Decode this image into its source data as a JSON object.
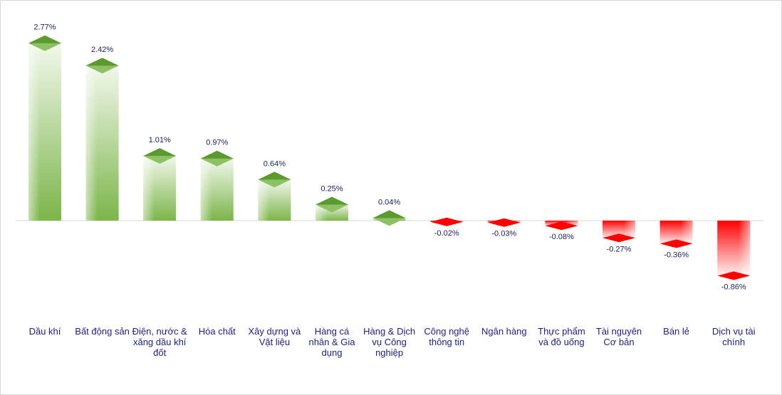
{
  "chart_data": {
    "type": "bar",
    "style": "3d-cylinder",
    "categories": [
      "Dầu khí",
      "Bất động sản",
      "Điện, nước & xăng dầu khí đốt",
      "Hóa chất",
      "Xây dựng và Vật liệu",
      "Hàng cá nhân & Gia dụng",
      "Hàng & Dịch vụ Công nghiệp",
      "Công nghệ thông tin",
      "Ngân hàng",
      "Thực phẩm và đồ uống",
      "Tài nguyên Cơ bản",
      "Bán lẻ",
      "Dịch vụ tài chính"
    ],
    "category_lines": [
      [
        "Dầu khí"
      ],
      [
        "Bất động sản"
      ],
      [
        "Điện, nước &",
        "xăng dầu khí",
        "đốt"
      ],
      [
        "Hóa chất"
      ],
      [
        "Xây dựng và",
        "Vật liệu"
      ],
      [
        "Hàng cá",
        "nhân & Gia",
        "dụng"
      ],
      [
        "Hàng & Dịch",
        "vụ Công",
        "nghiệp"
      ],
      [
        "Công nghệ",
        "thông tin"
      ],
      [
        "Ngân hàng"
      ],
      [
        "Thực phẩm",
        "và đồ uống"
      ],
      [
        "Tài nguyên",
        "Cơ bản"
      ],
      [
        "Bán lẻ"
      ],
      [
        "Dịch vụ tài",
        "chính"
      ]
    ],
    "values": [
      2.77,
      2.42,
      1.01,
      0.97,
      0.64,
      0.25,
      0.04,
      -0.02,
      -0.03,
      -0.08,
      -0.27,
      -0.36,
      -0.86
    ],
    "data_labels": [
      "2.77%",
      "2.42%",
      "1.01%",
      "0.97%",
      "0.64%",
      "0.25%",
      "0.04%",
      "-0.02%",
      "-0.03%",
      "-0.08%",
      "-0.27%",
      "-0.36%",
      "-0.86%"
    ],
    "title": "",
    "xlabel": "",
    "ylabel": "",
    "ylim": [
      -0.86,
      2.77
    ],
    "grid": false,
    "legend": "none",
    "colors": {
      "positive_dark": "#5a9a2e",
      "positive_mid": "#8fc064",
      "positive_light": "#f2f8ec",
      "negative_dark": "#ff0000",
      "negative_light": "#fff0f0",
      "axis": "#d9d9d9"
    }
  }
}
